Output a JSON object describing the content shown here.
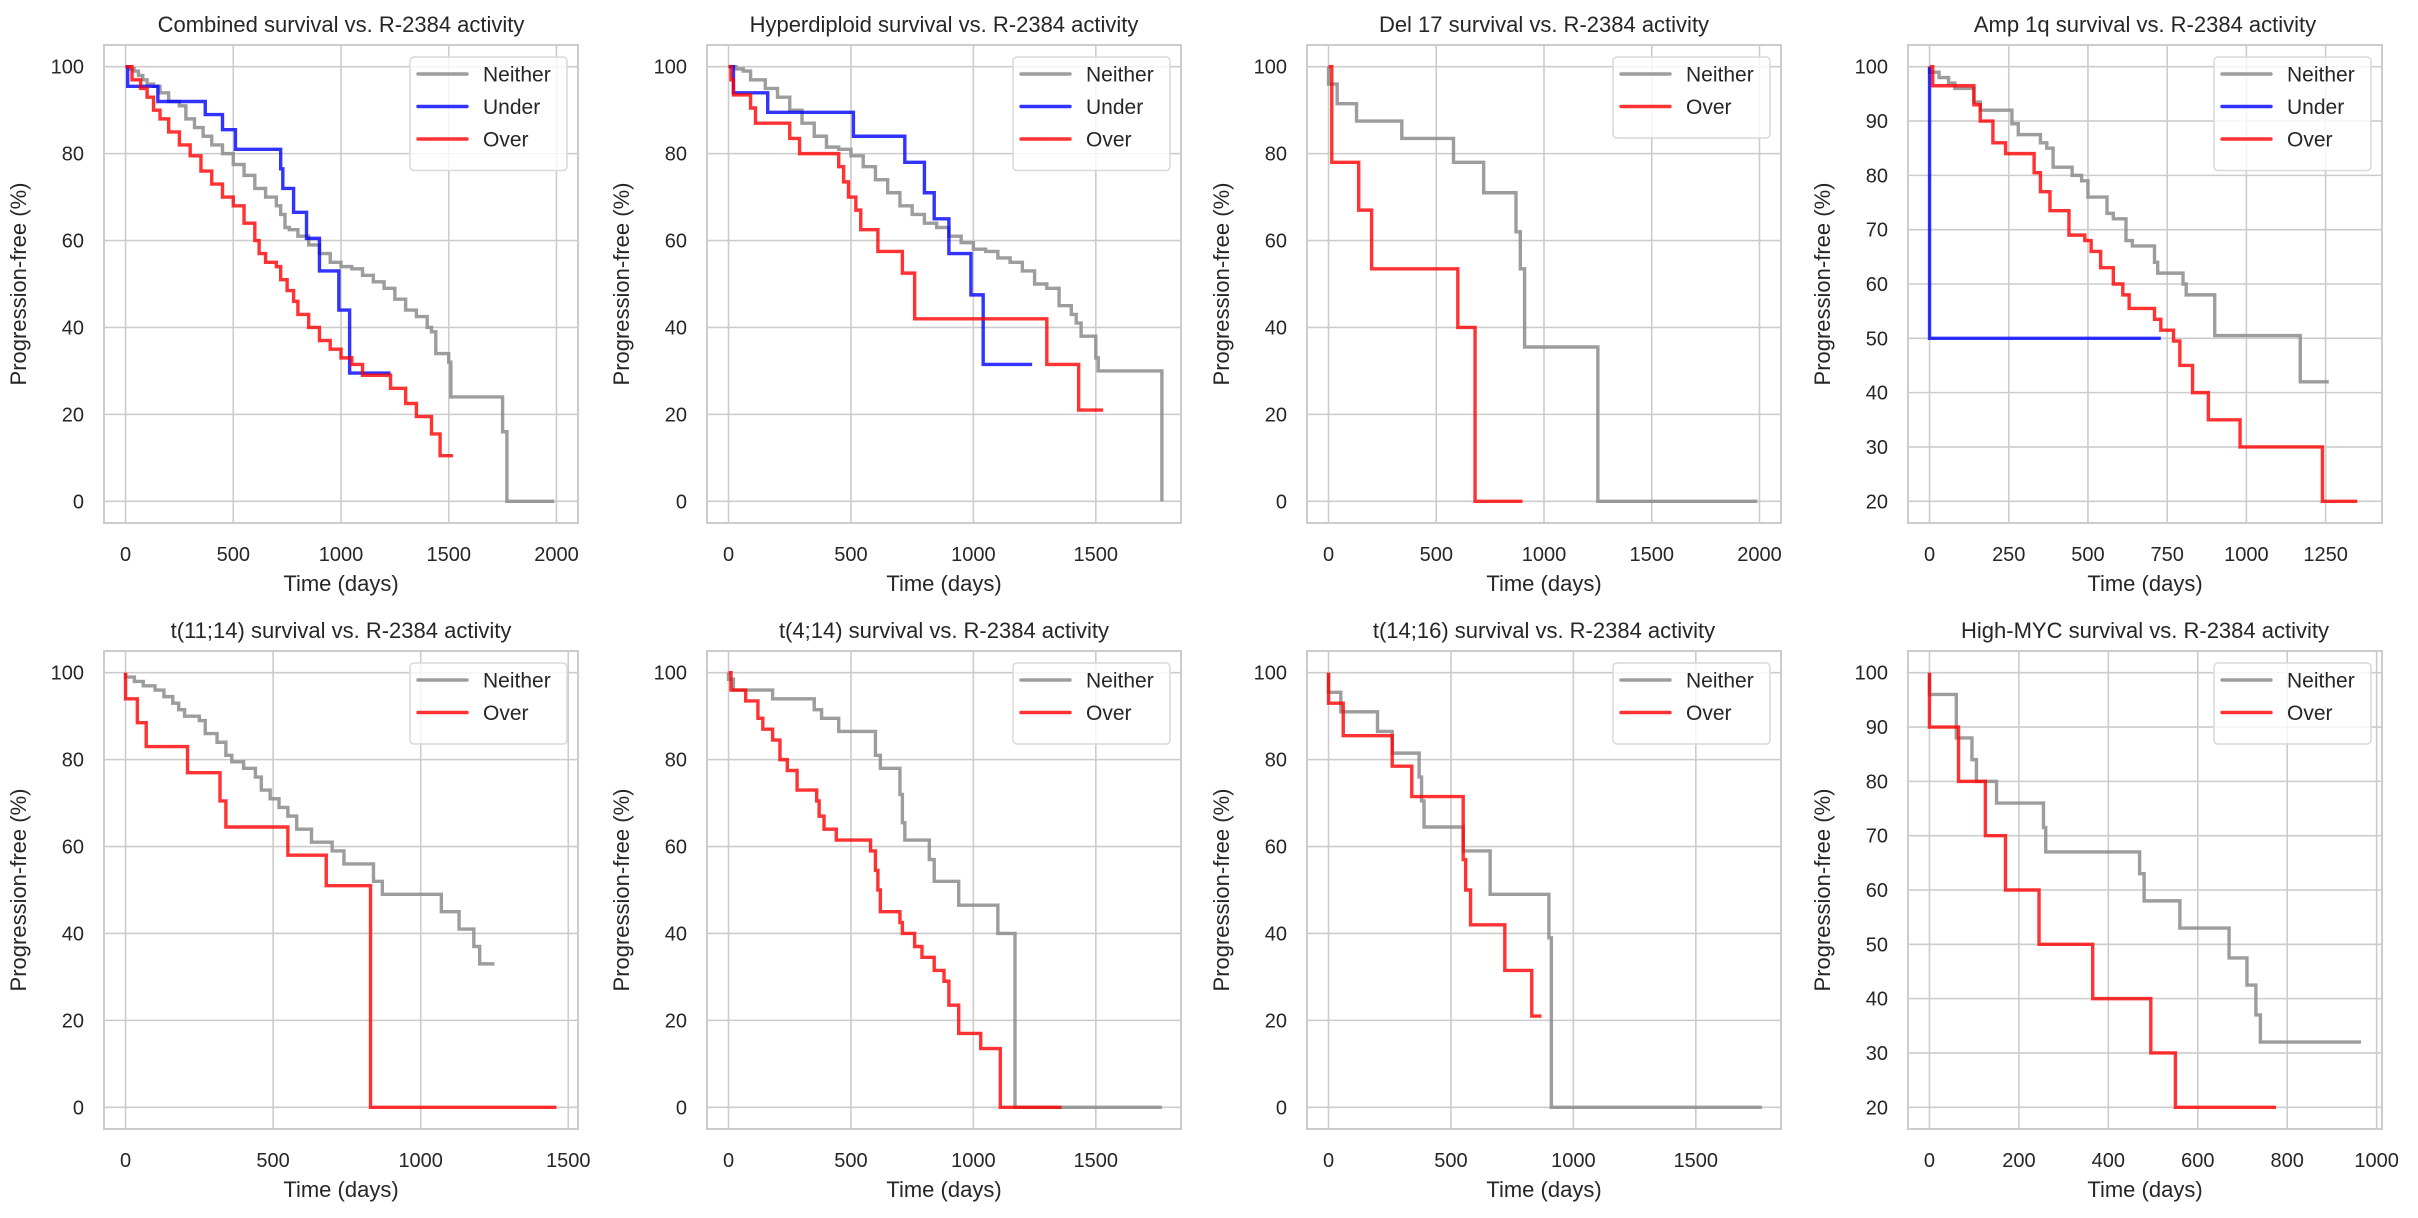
{
  "figure": {
    "colors": {
      "Neither": "#8c8c8c",
      "Under": "#0000ff",
      "Over": "#ff0000",
      "grid": "#cccccc",
      "spine": "#cccccc",
      "text": "#262626"
    }
  },
  "chart_data": [
    {
      "type": "line",
      "title": "Combined survival vs. R-2384 activity",
      "xlabel": "Time (days)",
      "ylabel": "Progression-free (%)",
      "xlim": [
        -100,
        2100
      ],
      "ylim": [
        -5,
        105
      ],
      "xticks": [
        0,
        500,
        1000,
        1500,
        2000
      ],
      "yticks": [
        0,
        20,
        40,
        60,
        80,
        100
      ],
      "grid": true,
      "legend": "top-right",
      "series": [
        {
          "name": "Neither",
          "x": [
            0,
            20,
            40,
            60,
            80,
            100,
            130,
            160,
            200,
            250,
            280,
            320,
            360,
            400,
            450,
            500,
            550,
            600,
            650,
            700,
            720,
            740,
            760,
            800,
            850,
            900,
            950,
            1000,
            1050,
            1100,
            1150,
            1200,
            1250,
            1300,
            1350,
            1400,
            1420,
            1440,
            1500,
            1510,
            1750,
            1770,
            1990
          ],
          "y": [
            100,
            99.5,
            99,
            98,
            97,
            96,
            95.5,
            94,
            92,
            91,
            88,
            86,
            84,
            82,
            80,
            77.5,
            75,
            72,
            70,
            68,
            66,
            63,
            62.5,
            61,
            59,
            57,
            55,
            54,
            53.5,
            52,
            50.5,
            49,
            46.5,
            44,
            42.5,
            40,
            39,
            34,
            32,
            24,
            16,
            0,
            0
          ]
        },
        {
          "name": "Under",
          "x": [
            0,
            10,
            150,
            370,
            450,
            510,
            720,
            730,
            780,
            840,
            900,
            990,
            1040,
            1230
          ],
          "y": [
            100,
            95.5,
            92,
            89,
            85.5,
            81,
            76.5,
            72,
            66.5,
            60.5,
            53,
            44,
            29.5,
            29.5
          ]
        },
        {
          "name": "Over",
          "x": [
            0,
            30,
            70,
            100,
            130,
            160,
            200,
            250,
            300,
            350,
            400,
            450,
            500,
            550,
            600,
            620,
            650,
            700,
            720,
            750,
            780,
            800,
            850,
            900,
            950,
            1000,
            1050,
            1100,
            1230,
            1300,
            1350,
            1420,
            1460,
            1520
          ],
          "y": [
            100,
            97,
            95,
            93,
            90,
            88,
            85,
            82,
            79.5,
            76,
            73,
            70,
            68,
            64,
            60,
            57,
            55,
            54,
            51,
            48.5,
            46,
            43,
            40,
            37,
            35,
            33,
            31.5,
            29,
            26,
            22.5,
            19.5,
            15.5,
            10.5,
            10.5
          ]
        }
      ]
    },
    {
      "type": "line",
      "title": "Hyperdiploid survival vs. R-2384 activity",
      "xlabel": "Time (days)",
      "ylabel": "Progression-free (%)",
      "xlim": [
        -88,
        1848
      ],
      "ylim": [
        -5,
        105
      ],
      "xticks": [
        0,
        500,
        1000,
        1500
      ],
      "yticks": [
        0,
        20,
        40,
        60,
        80,
        100
      ],
      "grid": true,
      "legend": "top-right",
      "series": [
        {
          "name": "Neither",
          "x": [
            0,
            30,
            60,
            90,
            150,
            200,
            250,
            300,
            350,
            400,
            450,
            500,
            550,
            600,
            650,
            700,
            750,
            800,
            850,
            900,
            950,
            1000,
            1050,
            1100,
            1150,
            1200,
            1250,
            1300,
            1350,
            1400,
            1420,
            1440,
            1500,
            1510,
            1770
          ],
          "y": [
            100,
            99.5,
            99,
            97,
            95,
            93,
            90,
            87,
            84,
            81.5,
            81,
            79.5,
            77,
            74,
            71,
            68,
            66,
            64,
            63,
            61,
            59.5,
            58,
            57.5,
            56,
            55,
            53,
            50,
            49,
            45,
            43,
            41,
            38,
            33,
            30,
            0
          ]
        },
        {
          "name": "Under",
          "x": [
            0,
            20,
            160,
            510,
            720,
            800,
            840,
            900,
            990,
            1040,
            1240
          ],
          "y": [
            100,
            94,
            89.5,
            84,
            78,
            71,
            65,
            57,
            47.5,
            31.5,
            31.5
          ]
        },
        {
          "name": "Over",
          "x": [
            0,
            10,
            20,
            90,
            110,
            250,
            290,
            450,
            470,
            490,
            520,
            540,
            610,
            710,
            760,
            1300,
            1430,
            1530
          ],
          "y": [
            100,
            97,
            93.5,
            90.5,
            87,
            83.5,
            80,
            77,
            73.5,
            70,
            67,
            62.5,
            57.5,
            52.5,
            42,
            31.5,
            21,
            21
          ]
        }
      ]
    },
    {
      "type": "line",
      "title": "Del 17 survival vs. R-2384 activity",
      "xlabel": "Time (days)",
      "ylabel": "Progression-free (%)",
      "xlim": [
        -100,
        2100
      ],
      "ylim": [
        -5,
        105
      ],
      "xticks": [
        0,
        500,
        1000,
        1500,
        2000
      ],
      "yticks": [
        0,
        20,
        40,
        60,
        80,
        100
      ],
      "grid": true,
      "legend": "top-right",
      "series": [
        {
          "name": "Neither",
          "x": [
            0,
            40,
            130,
            340,
            580,
            720,
            870,
            890,
            910,
            1250,
            1990
          ],
          "y": [
            96,
            91.5,
            87.5,
            83.5,
            78,
            71,
            62,
            53.5,
            35.5,
            0,
            0
          ]
        },
        {
          "name": "Over",
          "x": [
            0,
            15,
            140,
            200,
            600,
            680,
            900
          ],
          "y": [
            100,
            78,
            67,
            53.5,
            40,
            0,
            0
          ]
        }
      ]
    },
    {
      "type": "line",
      "title": "Amp 1q survival vs. R-2384 activity",
      "xlabel": "Time (days)",
      "ylabel": "Progression-free (%)",
      "xlim": [
        -68,
        1428
      ],
      "ylim": [
        16,
        104
      ],
      "xticks": [
        0,
        250,
        500,
        750,
        1000,
        1250
      ],
      "yticks": [
        20,
        30,
        40,
        50,
        60,
        70,
        80,
        90,
        100
      ],
      "grid": true,
      "legend": "top-right",
      "series": [
        {
          "name": "Neither",
          "x": [
            0,
            30,
            60,
            80,
            140,
            160,
            260,
            280,
            350,
            370,
            390,
            450,
            480,
            500,
            560,
            580,
            620,
            640,
            710,
            720,
            800,
            810,
            900,
            1170,
            1260
          ],
          "y": [
            99,
            98,
            97,
            96,
            93.5,
            92,
            89.5,
            87.5,
            86,
            85,
            81.5,
            80,
            79,
            76,
            73,
            72,
            68,
            67,
            64,
            62,
            60,
            58,
            50.5,
            42,
            42
          ]
        },
        {
          "name": "Under",
          "x": [
            0,
            0,
            730
          ],
          "y": [
            100,
            50,
            50
          ]
        },
        {
          "name": "Over",
          "x": [
            0,
            10,
            140,
            160,
            200,
            240,
            330,
            350,
            380,
            440,
            490,
            510,
            540,
            580,
            610,
            630,
            710,
            730,
            770,
            790,
            830,
            880,
            980,
            1240,
            1350
          ],
          "y": [
            100,
            96.5,
            93,
            90,
            86,
            84,
            80.5,
            77,
            73.5,
            69,
            68,
            66,
            63,
            60,
            58,
            55.5,
            53.5,
            51.5,
            49.5,
            45,
            40,
            35,
            30,
            20,
            20
          ]
        }
      ]
    },
    {
      "type": "line",
      "title": "t(11;14) survival vs. R-2384 activity",
      "xlabel": "Time (days)",
      "ylabel": "Progression-free (%)",
      "xlim": [
        -73,
        1533
      ],
      "ylim": [
        -5,
        105
      ],
      "xticks": [
        0,
        500,
        1000,
        1500
      ],
      "yticks": [
        0,
        20,
        40,
        60,
        80,
        100
      ],
      "grid": true,
      "legend": "top-right",
      "series": [
        {
          "name": "Neither",
          "x": [
            0,
            30,
            60,
            100,
            130,
            160,
            180,
            200,
            250,
            270,
            310,
            340,
            360,
            400,
            440,
            460,
            490,
            520,
            550,
            580,
            630,
            700,
            740,
            840,
            870,
            1070,
            1130,
            1180,
            1200,
            1250
          ],
          "y": [
            99,
            98,
            97,
            96,
            94.5,
            93,
            91.5,
            90,
            89,
            86,
            84,
            81,
            79.5,
            78,
            76,
            73,
            71,
            69,
            67,
            64,
            61,
            59,
            56,
            52,
            49,
            45,
            41,
            37,
            33,
            33
          ]
        },
        {
          "name": "Over",
          "x": [
            0,
            40,
            70,
            210,
            320,
            340,
            550,
            680,
            830,
            1460
          ],
          "y": [
            94,
            88.5,
            83,
            77,
            70.5,
            64.5,
            58,
            51,
            0,
            0
          ]
        }
      ]
    },
    {
      "type": "line",
      "title": "t(4;14) survival vs. R-2384 activity",
      "xlabel": "Time (days)",
      "ylabel": "Progression-free (%)",
      "xlim": [
        -88,
        1848
      ],
      "ylim": [
        -5,
        105
      ],
      "xticks": [
        0,
        500,
        1000,
        1500
      ],
      "yticks": [
        0,
        20,
        40,
        60,
        80,
        100
      ],
      "grid": true,
      "legend": "top-right",
      "series": [
        {
          "name": "Neither",
          "x": [
            0,
            20,
            180,
            350,
            380,
            450,
            600,
            620,
            700,
            710,
            720,
            820,
            840,
            940,
            1100,
            1170,
            1770
          ],
          "y": [
            98.5,
            96,
            94,
            91.5,
            89.5,
            86.5,
            81,
            78,
            72,
            65.5,
            61.5,
            57,
            52,
            46.5,
            40,
            0,
            0
          ]
        },
        {
          "name": "Over",
          "x": [
            0,
            10,
            70,
            120,
            140,
            180,
            210,
            240,
            280,
            360,
            370,
            390,
            440,
            580,
            600,
            610,
            620,
            700,
            710,
            760,
            790,
            840,
            880,
            900,
            940,
            1030,
            1110,
            1360
          ],
          "y": [
            100,
            96,
            93.5,
            89.5,
            87,
            84.5,
            80,
            77.5,
            73,
            70.5,
            67,
            64,
            61.5,
            59,
            54.5,
            50,
            45,
            42.5,
            40,
            37,
            34.5,
            31.5,
            29,
            23.5,
            17,
            13.5,
            0,
            0
          ]
        }
      ]
    },
    {
      "type": "line",
      "title": "t(14;16) survival vs. R-2384 activity",
      "xlabel": "Time (days)",
      "ylabel": "Progression-free (%)",
      "xlim": [
        -88,
        1848
      ],
      "ylim": [
        -5,
        105
      ],
      "xticks": [
        0,
        500,
        1000,
        1500
      ],
      "yticks": [
        0,
        20,
        40,
        60,
        80,
        100
      ],
      "grid": true,
      "legend": "top-right",
      "series": [
        {
          "name": "Neither",
          "x": [
            0,
            50,
            200,
            260,
            370,
            380,
            390,
            550,
            660,
            900,
            910,
            1770
          ],
          "y": [
            95.5,
            91,
            86.5,
            81.5,
            76,
            70.5,
            64.5,
            59,
            49,
            39,
            0,
            0
          ]
        },
        {
          "name": "Over",
          "x": [
            0,
            60,
            260,
            340,
            550,
            560,
            580,
            590,
            720,
            830,
            870
          ],
          "y": [
            93,
            85.5,
            78.5,
            71.5,
            57,
            50,
            42,
            42,
            31.5,
            21,
            21
          ]
        }
      ]
    },
    {
      "type": "line",
      "title": "High-MYC survival vs. R-2384 activity",
      "xlabel": "Time (days)",
      "ylabel": "Progression-free (%)",
      "xlim": [
        -48,
        1012
      ],
      "ylim": [
        16,
        104
      ],
      "xticks": [
        0,
        200,
        400,
        600,
        800,
        1000
      ],
      "yticks": [
        20,
        30,
        40,
        50,
        60,
        70,
        80,
        90,
        100
      ],
      "grid": true,
      "legend": "top-right",
      "series": [
        {
          "name": "Neither",
          "x": [
            0,
            60,
            95,
            105,
            150,
            255,
            260,
            470,
            480,
            560,
            670,
            710,
            730,
            740,
            965
          ],
          "y": [
            96,
            88,
            84,
            80,
            76,
            71.5,
            67,
            63,
            58,
            53,
            47.5,
            42.5,
            37,
            32,
            32
          ]
        },
        {
          "name": "Over",
          "x": [
            0,
            65,
            125,
            170,
            245,
            365,
            495,
            550,
            775
          ],
          "y": [
            90,
            80,
            70,
            60,
            50,
            40,
            30,
            20,
            20
          ]
        }
      ]
    }
  ]
}
